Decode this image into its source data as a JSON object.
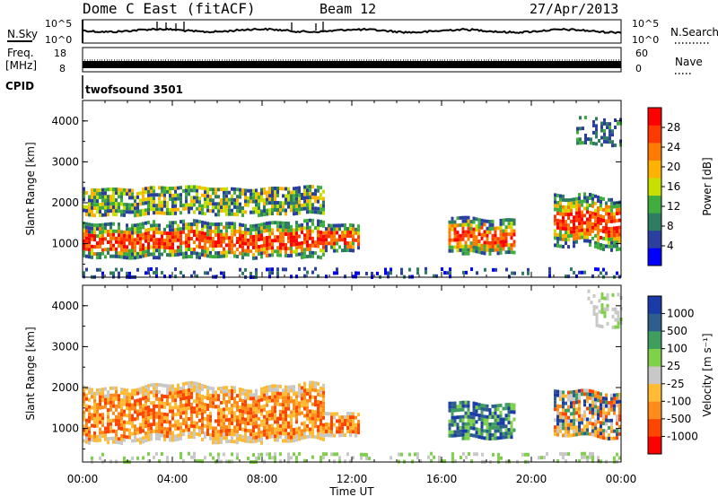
{
  "header": {
    "station": "Dome C East (fitACF)",
    "beam": "Beam 12",
    "date": "27/Apr/2013"
  },
  "noise_panel": {
    "left_label": "N.Sky",
    "left_ticks": [
      "10^5",
      "10^0"
    ],
    "right_label": "N.Search",
    "right_ticks": [
      "10^5",
      "10^0"
    ]
  },
  "freq_panel": {
    "left_label_1": "Freq.",
    "left_label_2": "[MHz]",
    "left_ticks": [
      "18",
      "8"
    ],
    "right_label": "Nave",
    "right_ticks": [
      "60",
      "0"
    ]
  },
  "cpid": {
    "label": "CPID",
    "program": "twofsound 3501"
  },
  "colors": {
    "power_scale": [
      "#0000ff",
      "#2a3fa0",
      "#2e7d62",
      "#3fae3f",
      "#c8e000",
      "#ffb300",
      "#ff7a00",
      "#ff3a00",
      "#ff0000"
    ],
    "velocity_scale": [
      "#ff0000",
      "#ff4500",
      "#ff8c1a",
      "#ffbb33",
      "#c8c8c8",
      "#7fd04a",
      "#3f9e5e",
      "#2e5e8e",
      "#1a3ca8"
    ]
  },
  "chart_data": [
    {
      "type": "heatmap",
      "title": "Power",
      "ylabel": "Slant Range [km]",
      "xlabel": "",
      "x_ticks": [
        "00:00",
        "04:00",
        "08:00",
        "12:00",
        "16:00",
        "20:00",
        "00:00"
      ],
      "xlim_hours": [
        0,
        24
      ],
      "y_ticks": [
        1000,
        2000,
        3000,
        4000
      ],
      "ylim_km": [
        180,
        4500
      ],
      "colorbar": {
        "label": "Power [dB]",
        "ticks": [
          "4",
          "8",
          "12",
          "16",
          "20",
          "24",
          "28"
        ],
        "range": [
          0,
          30
        ]
      },
      "echo_regions": [
        {
          "t_start": 0.0,
          "t_end": 10.8,
          "range_start": 600,
          "range_end": 1700,
          "level": "high"
        },
        {
          "t_start": 0.0,
          "t_end": 10.8,
          "range_start": 1700,
          "range_end": 2500,
          "level": "medium"
        },
        {
          "t_start": 10.8,
          "t_end": 12.3,
          "range_start": 800,
          "range_end": 1600,
          "level": "high"
        },
        {
          "t_start": 16.3,
          "t_end": 19.2,
          "range_start": 700,
          "range_end": 1800,
          "level": "high"
        },
        {
          "t_start": 21.0,
          "t_end": 24.0,
          "range_start": 800,
          "range_end": 2400,
          "level": "high"
        },
        {
          "t_start": 22.0,
          "t_end": 24.0,
          "range_start": 3400,
          "range_end": 4200,
          "level": "low"
        },
        {
          "t_start": 0.0,
          "t_end": 24.0,
          "range_start": 200,
          "range_end": 450,
          "level": "ground"
        }
      ]
    },
    {
      "type": "heatmap",
      "title": "Velocity",
      "ylabel": "Slant Range [km]",
      "xlabel": "Time UT",
      "x_ticks": [
        "00:00",
        "04:00",
        "08:00",
        "12:00",
        "16:00",
        "20:00",
        "00:00"
      ],
      "xlim_hours": [
        0,
        24
      ],
      "y_ticks": [
        1000,
        2000,
        3000,
        4000
      ],
      "ylim_km": [
        180,
        4500
      ],
      "colorbar": {
        "label": "Velocity [m s⁻¹]",
        "ticks": [
          "-1000",
          "-500",
          "-100",
          "-25",
          "25",
          "100",
          "500",
          "1000"
        ]
      },
      "echo_regions": [
        {
          "t_start": 0.0,
          "t_end": 10.8,
          "range_start": 600,
          "range_end": 2300,
          "velocity": "negative"
        },
        {
          "t_start": 10.8,
          "t_end": 12.3,
          "range_start": 800,
          "range_end": 1500,
          "velocity": "negative"
        },
        {
          "t_start": 16.3,
          "t_end": 19.2,
          "range_start": 700,
          "range_end": 1800,
          "velocity": "positive"
        },
        {
          "t_start": 21.0,
          "t_end": 24.0,
          "range_start": 700,
          "range_end": 2100,
          "velocity": "mixed"
        },
        {
          "t_start": 22.5,
          "t_end": 24.0,
          "range_start": 3400,
          "range_end": 4500,
          "velocity": "low"
        },
        {
          "t_start": 0.0,
          "t_end": 24.0,
          "range_start": 200,
          "range_end": 450,
          "velocity": "ground"
        }
      ]
    }
  ]
}
